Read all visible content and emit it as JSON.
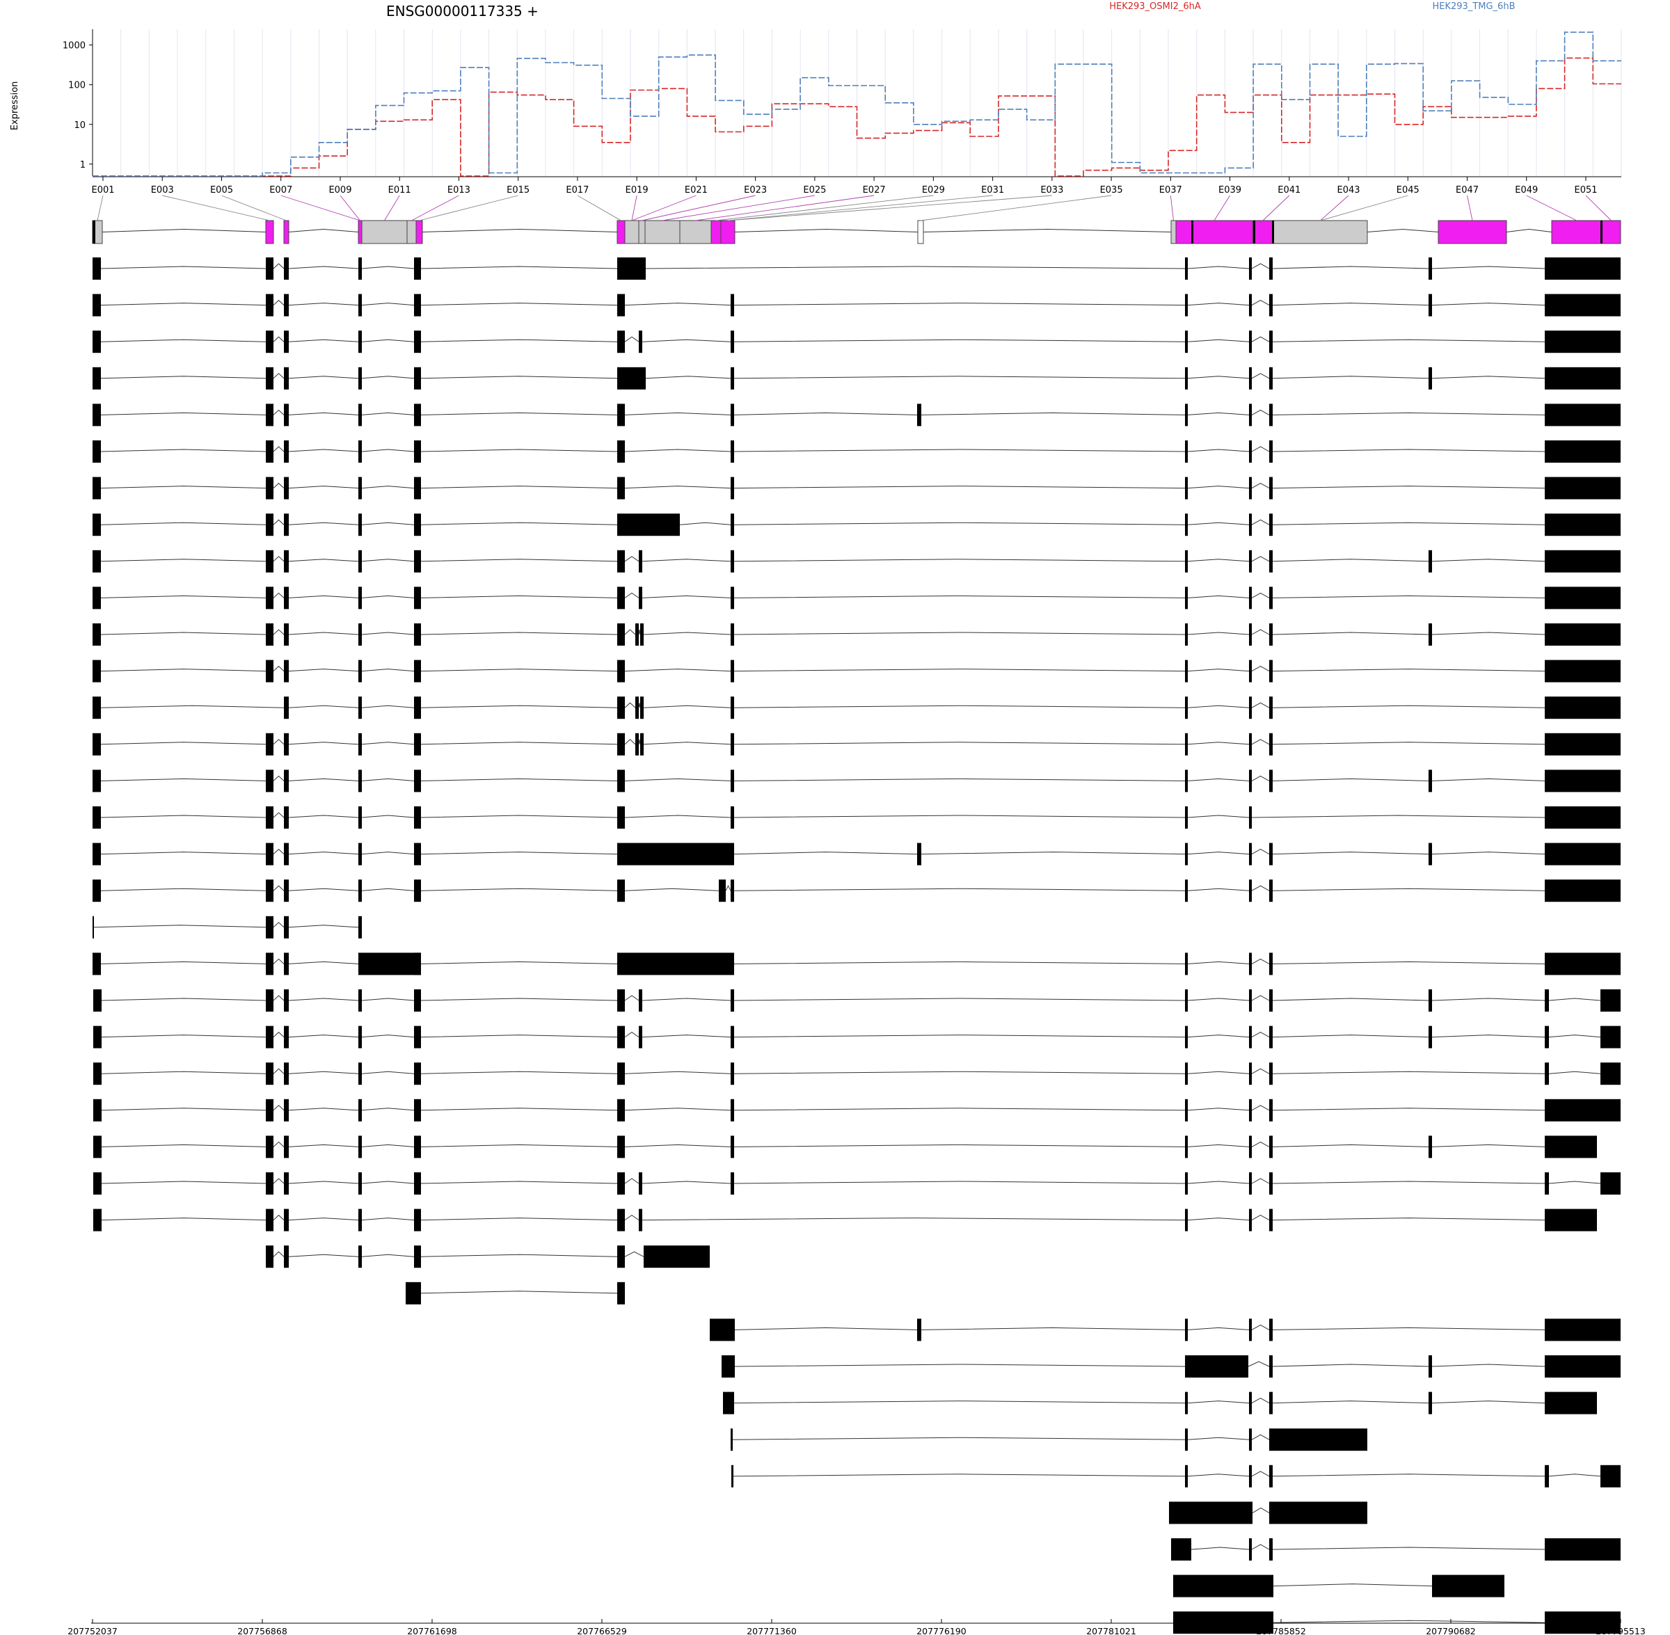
{
  "chart_data": {
    "type": "line",
    "title": "ENSG00000117335 +",
    "ylabel": "Expression",
    "xlabel": "",
    "yscale": "log",
    "yticks": [
      "1",
      "10",
      "100",
      "1000"
    ],
    "ylim": [
      0.5,
      2500
    ],
    "grid": true,
    "legend_position": "top",
    "exon_labels": [
      "E001",
      "E003",
      "E005",
      "E007",
      "E009",
      "E011",
      "E013",
      "E015",
      "E017",
      "E019",
      "E021",
      "E023",
      "E025",
      "E027",
      "E029",
      "E031",
      "E033",
      "E035",
      "E037",
      "E039",
      "E041",
      "E043",
      "E045",
      "E047",
      "E049",
      "E051"
    ],
    "genome_ticks": [
      207752037,
      207756868,
      207761698,
      207766529,
      207771360,
      207776190,
      207781021,
      207785852,
      207790682,
      207795513
    ],
    "genome_range": [
      207752037,
      207795513
    ],
    "series": [
      {
        "name": "HEK293_OSMI2_6hA",
        "color": "#d62728",
        "values": [
          0.5,
          0.5,
          0.5,
          0.5,
          0.5,
          0.5,
          0.5,
          0.8,
          1.6,
          7.5,
          12,
          13,
          42,
          0.5,
          65,
          55,
          42,
          9,
          3.5,
          73,
          80,
          16,
          6.5,
          9,
          33,
          33,
          28,
          4.5,
          6,
          7,
          11,
          5,
          52,
          52,
          0.5,
          0.7,
          0.8,
          0.7,
          2.2,
          55,
          20,
          55,
          3.5,
          55,
          55,
          58,
          10,
          28,
          15,
          15,
          16,
          80,
          470,
          105
        ]
      },
      {
        "name": "HEK293_TMG_6hB",
        "color": "#4e7fba",
        "values": [
          0.5,
          0.5,
          0.5,
          0.5,
          0.5,
          0.5,
          0.6,
          1.5,
          3.5,
          7.5,
          30,
          62,
          70,
          270,
          0.6,
          460,
          360,
          310,
          45,
          16,
          500,
          560,
          40,
          18,
          24,
          150,
          95,
          95,
          35,
          10,
          12,
          13,
          24,
          13,
          330,
          330,
          1.1,
          0.6,
          0.6,
          0.6,
          0.8,
          330,
          42,
          330,
          5,
          330,
          340,
          22,
          125,
          48,
          32,
          400,
          2100,
          400
        ]
      }
    ],
    "exon_colors": {
      "significant": "#f01ef0",
      "tested": "#cccccc",
      "not_tested": "#ffffff",
      "transcript": "#000000"
    }
  }
}
